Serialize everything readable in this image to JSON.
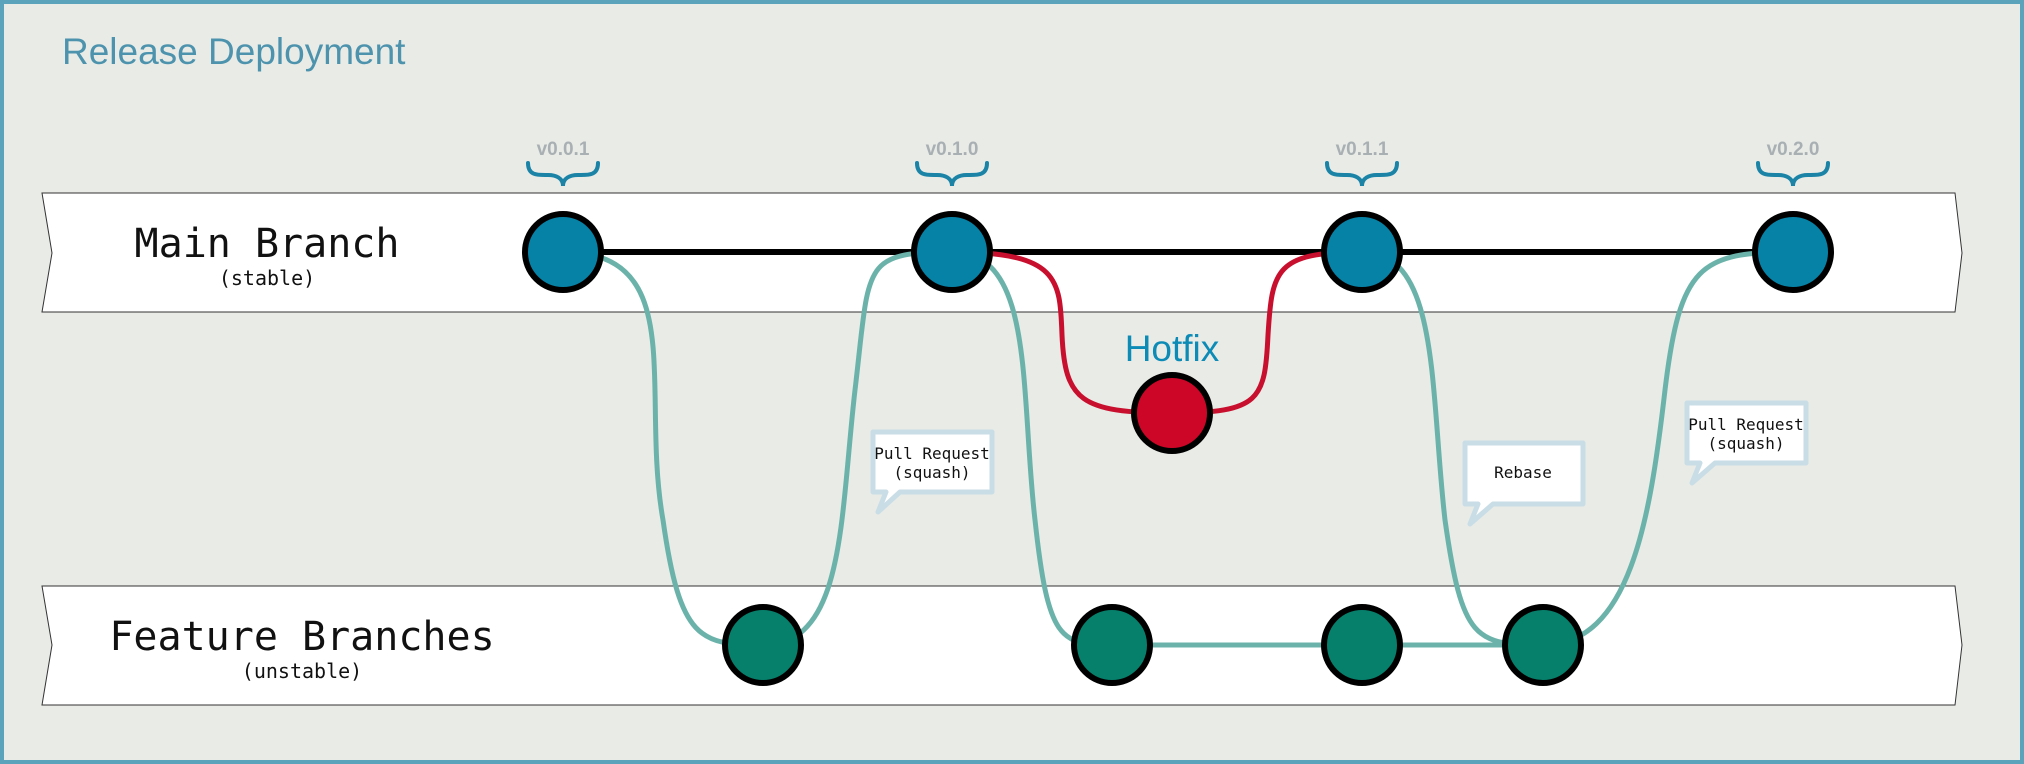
{
  "title": "Release Deployment",
  "colors": {
    "background": "#e9ebe7",
    "frame": "#5aa3ba",
    "title": "#4d93ad",
    "version_text": "#a9b0b3",
    "brace": "#1a83a6",
    "main_node": "#0682a6",
    "feature_node": "#067f6b",
    "hotfix_node": "#cd0628",
    "hotfix_text": "#0c8bb6",
    "feature_line": "#6bb3aa",
    "hotfix_line": "#c8102e",
    "main_line": "#000000",
    "bubble_border": "#c9dde6"
  },
  "lanes": {
    "main": {
      "label": "Main Branch",
      "sublabel": "(stable)"
    },
    "feature": {
      "label": "Feature Branches",
      "sublabel": "(unstable)"
    }
  },
  "versions": [
    "v0.0.1",
    "v0.1.0",
    "v0.1.1",
    "v0.2.0"
  ],
  "hotfix": {
    "label": "Hotfix"
  },
  "bubbles": [
    {
      "line1": "Pull Request",
      "line2": "(squash)"
    },
    {
      "line1": "Rebase",
      "line2": ""
    },
    {
      "line1": "Pull Request",
      "line2": "(squash)"
    }
  ]
}
